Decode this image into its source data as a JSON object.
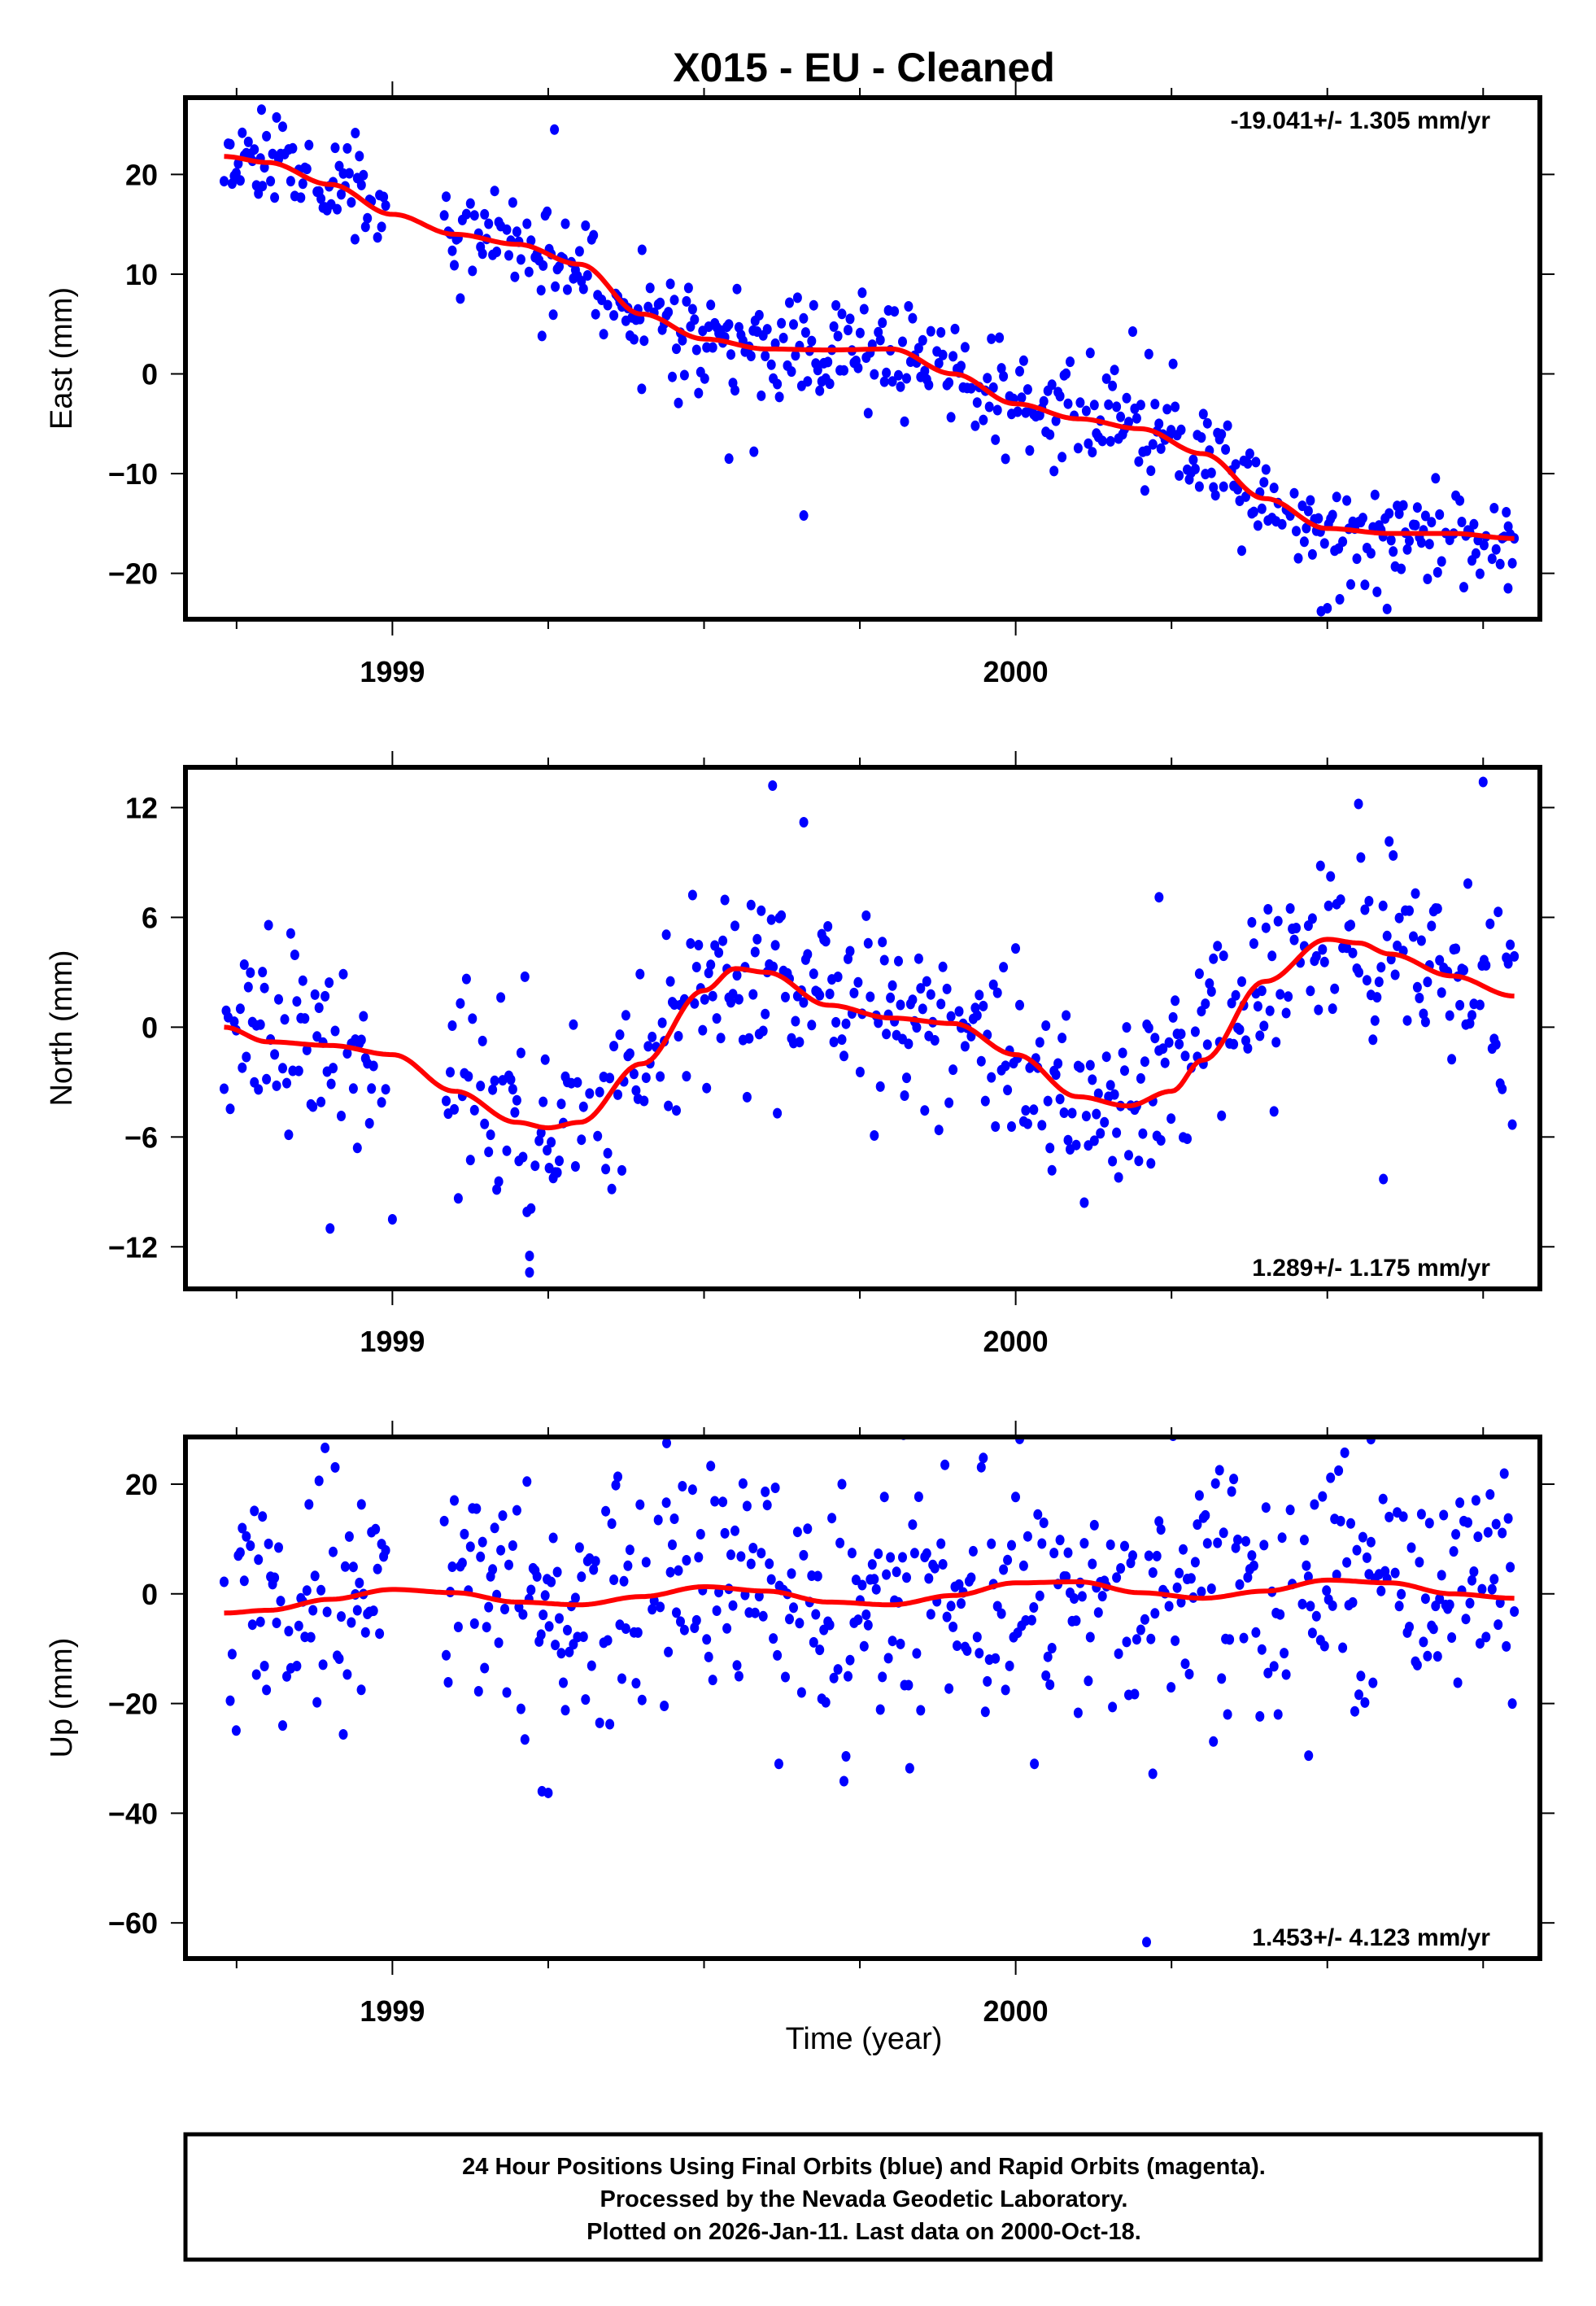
{
  "figure": {
    "title": "X015  - EU - Cleaned",
    "xlabel": "Time (year)",
    "footer_lines": [
      "24 Hour Positions Using Final Orbits (blue) and Rapid Orbits (magenta).",
      "Processed by the Nevada Geodetic Laboratory.",
      "Plotted on 2026-Jan-11. Last data on 2000-Oct-18."
    ],
    "colors": {
      "points": "#0000ff",
      "fit": "#ff0000",
      "frame": "#000000",
      "rapid_points": "#ff00ff"
    }
  },
  "chart_data": [
    {
      "type": "scatter",
      "panel": "east",
      "ylabel": "East (mm)",
      "rate_label": "-19.041+/- 1.305 mm/yr",
      "rate_position": "top-right",
      "xlim": [
        1998.668,
        2000.841
      ],
      "ylim": [
        -24.6,
        27.7
      ],
      "xticks_major": [
        1999,
        2000
      ],
      "xtick_labels": [
        "1999",
        "2000"
      ],
      "xticks_minor": [
        1998.75,
        1999.25,
        1999.5,
        1999.75,
        2000.25,
        2000.5,
        2000.75
      ],
      "yticks": [
        -20,
        -10,
        0,
        10,
        20
      ],
      "ytick_labels": [
        "−20",
        "−10",
        "0",
        "10",
        "20"
      ],
      "data_range": [
        1998.73,
        2000.8
      ],
      "gaps": [
        [
          1998.99,
          1999.08
        ]
      ],
      "scatter_sigma_mm": 2.6,
      "point_count": 640,
      "seed": 11,
      "fit_curve": {
        "x": [
          1998.73,
          1998.8,
          1998.9,
          1999.0,
          1999.1,
          1999.2,
          1999.3,
          1999.4,
          1999.5,
          1999.6,
          1999.7,
          1999.8,
          1999.9,
          2000.0,
          2000.1,
          2000.2,
          2000.3,
          2000.4,
          2000.5,
          2000.6,
          2000.7,
          2000.8
        ],
        "y": [
          21.8,
          21.2,
          19.0,
          16.0,
          14.0,
          13.0,
          11.0,
          6.0,
          3.5,
          2.5,
          2.4,
          2.5,
          0.0,
          -3.0,
          -4.5,
          -5.5,
          -8.0,
          -12.5,
          -15.5,
          -16.0,
          -16.0,
          -16.5
        ]
      },
      "outliers": [
        {
          "x": 1998.79,
          "y": 26.5
        },
        {
          "x": 1998.94,
          "y": 13.5
        },
        {
          "x": 1999.26,
          "y": 24.5
        },
        {
          "x": 1999.24,
          "y": 3.8
        },
        {
          "x": 1999.4,
          "y": -1.5
        },
        {
          "x": 1999.54,
          "y": -8.5
        },
        {
          "x": 1999.58,
          "y": -7.8
        },
        {
          "x": 1999.66,
          "y": -14.2
        },
        {
          "x": 2000.49,
          "y": -23.8
        },
        {
          "x": 2000.5,
          "y": -23.5
        },
        {
          "x": 2000.52,
          "y": -22.6
        },
        {
          "x": 2000.79,
          "y": -21.5
        }
      ]
    },
    {
      "type": "scatter",
      "panel": "north",
      "ylabel": "North (mm)",
      "rate_label": "1.289+/- 1.175 mm/yr",
      "rate_position": "bottom-right",
      "xlim": [
        1998.668,
        2000.841
      ],
      "ylim": [
        -14.3,
        14.2
      ],
      "xticks_major": [
        1999,
        2000
      ],
      "xtick_labels": [
        "1999",
        "2000"
      ],
      "xticks_minor": [
        1998.75,
        1999.25,
        1999.5,
        1999.75,
        2000.25,
        2000.5,
        2000.75
      ],
      "yticks": [
        -12,
        -6,
        0,
        6,
        12
      ],
      "ytick_labels": [
        "−12",
        "−6",
        "0",
        "6",
        "12"
      ],
      "data_range": [
        1998.73,
        2000.8
      ],
      "gaps": [
        [
          1998.99,
          1999.08
        ]
      ],
      "scatter_sigma_mm": 2.6,
      "point_count": 640,
      "seed": 23,
      "fit_curve": {
        "x": [
          1998.73,
          1998.8,
          1998.9,
          1999.0,
          1999.1,
          1999.2,
          1999.25,
          1999.3,
          1999.4,
          1999.5,
          1999.55,
          1999.6,
          1999.7,
          1999.8,
          1999.9,
          2000.0,
          2000.1,
          2000.18,
          2000.25,
          2000.3,
          2000.4,
          2000.5,
          2000.55,
          2000.6,
          2000.7,
          2000.8
        ],
        "y": [
          0.0,
          -0.8,
          -1.0,
          -1.5,
          -3.5,
          -5.2,
          -5.5,
          -5.2,
          -2.0,
          2.0,
          3.2,
          3.0,
          1.2,
          0.5,
          0.2,
          -1.5,
          -3.8,
          -4.3,
          -3.5,
          -1.8,
          2.5,
          4.8,
          4.6,
          4.0,
          2.8,
          1.7
        ]
      },
      "outliers": [
        {
          "x": 1999.61,
          "y": 13.2
        },
        {
          "x": 1999.66,
          "y": 11.2
        },
        {
          "x": 1999.22,
          "y": -13.4
        },
        {
          "x": 1999.22,
          "y": -12.5
        },
        {
          "x": 1998.9,
          "y": -11.0
        },
        {
          "x": 1999.0,
          "y": -10.5
        },
        {
          "x": 2000.59,
          "y": -8.3
        },
        {
          "x": 2000.75,
          "y": 13.4
        },
        {
          "x": 2000.55,
          "y": 12.2
        },
        {
          "x": 2000.23,
          "y": 7.1
        }
      ]
    },
    {
      "type": "scatter",
      "panel": "up",
      "ylabel": "Up (mm)",
      "rate_label": "1.453+/- 4.123 mm/yr",
      "rate_position": "bottom-right",
      "xlim": [
        1998.668,
        2000.841
      ],
      "ylim": [
        -66.5,
        28.6
      ],
      "xticks_major": [
        1999,
        2000
      ],
      "xtick_labels": [
        "1999",
        "2000"
      ],
      "xticks_minor": [
        1998.75,
        1999.25,
        1999.5,
        1999.75,
        2000.25,
        2000.5,
        2000.75
      ],
      "yticks": [
        -60,
        -40,
        -20,
        0,
        20
      ],
      "ytick_labels": [
        "−60",
        "−40",
        "−20",
        "0",
        "20"
      ],
      "data_range": [
        1998.73,
        2000.8
      ],
      "gaps": [
        [
          1998.99,
          1999.08
        ]
      ],
      "scatter_sigma_mm": 10.5,
      "point_count": 640,
      "seed": 37,
      "fit_curve": {
        "x": [
          1998.73,
          1998.8,
          1998.9,
          1999.0,
          1999.1,
          1999.2,
          1999.3,
          1999.4,
          1999.5,
          1999.6,
          1999.7,
          1999.8,
          1999.9,
          2000.0,
          2000.1,
          2000.2,
          2000.3,
          2000.4,
          2000.5,
          2000.6,
          2000.7,
          2000.8
        ],
        "y": [
          -3.5,
          -3.0,
          -1.0,
          0.8,
          0.2,
          -1.5,
          -2.0,
          -0.5,
          1.3,
          0.5,
          -1.5,
          -2.0,
          -0.3,
          2.0,
          2.2,
          0.2,
          -0.8,
          0.5,
          2.5,
          2.0,
          0.0,
          -0.8
        ]
      },
      "outliers": [
        {
          "x": 1999.24,
          "y": -36.0
        },
        {
          "x": 1999.25,
          "y": -36.3
        },
        {
          "x": 2000.21,
          "y": -63.5
        },
        {
          "x": 2000.03,
          "y": -31.0
        },
        {
          "x": 1999.83,
          "y": -31.8
        },
        {
          "x": 1999.62,
          "y": -31.0
        },
        {
          "x": 1998.95,
          "y": -17.5
        },
        {
          "x": 1999.82,
          "y": 29.0
        },
        {
          "x": 1999.44,
          "y": 27.5
        },
        {
          "x": 2000.57,
          "y": 28.2
        },
        {
          "x": 2000.47,
          "y": -29.5
        },
        {
          "x": 2000.22,
          "y": -32.8
        }
      ]
    }
  ]
}
